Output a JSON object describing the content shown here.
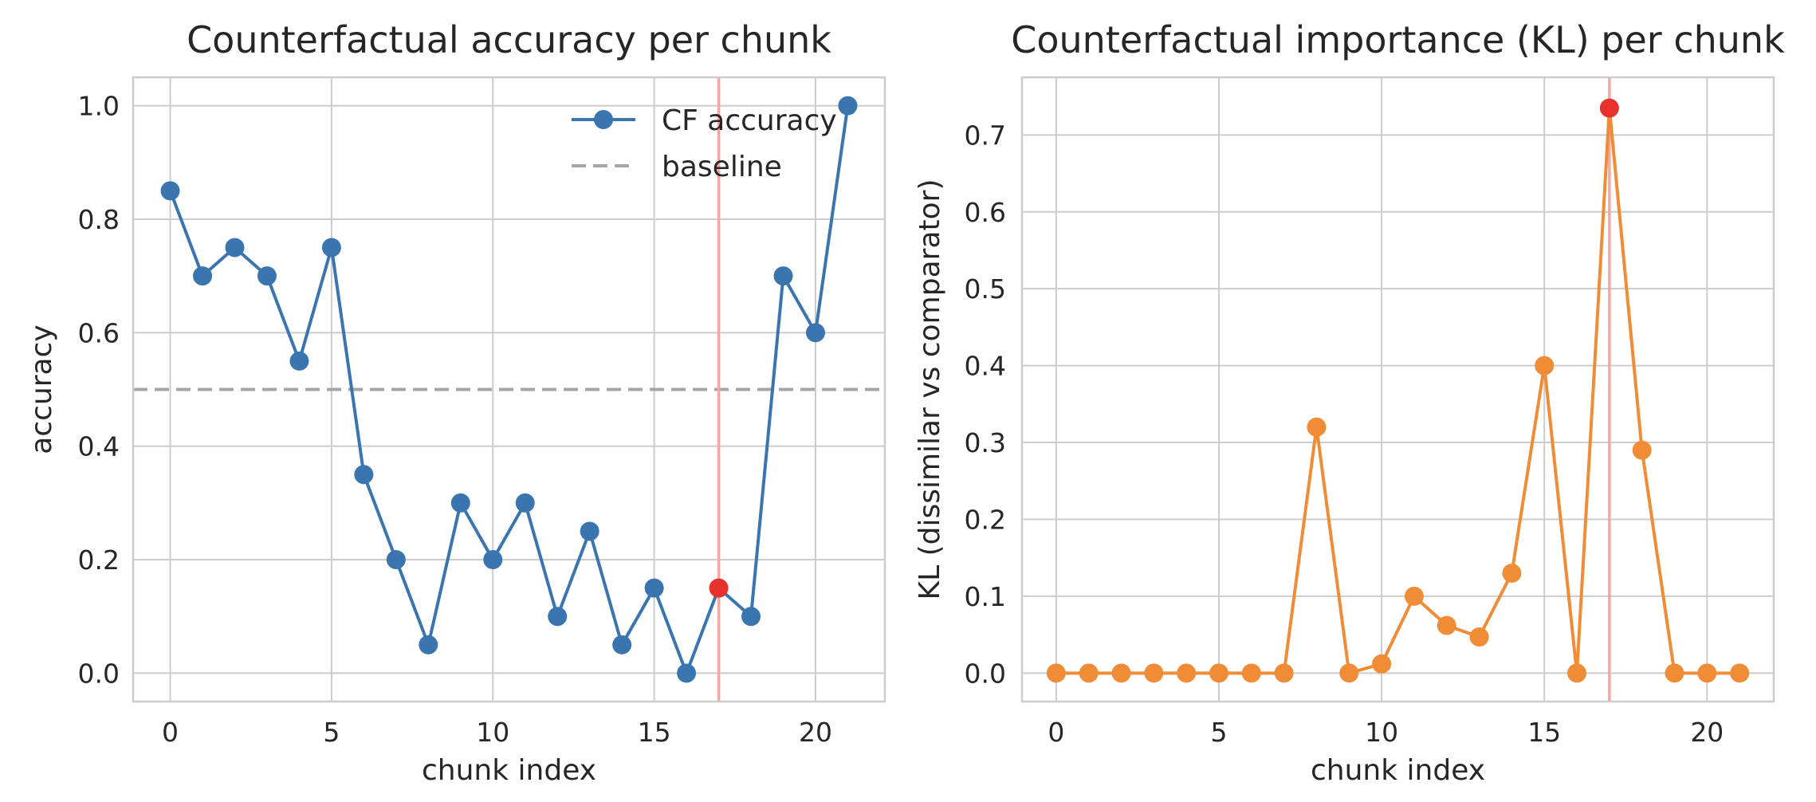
{
  "chart_data": [
    {
      "type": "line",
      "title": "Counterfactual accuracy per chunk",
      "xlabel": "chunk index",
      "ylabel": "accuracy",
      "xlim": [
        -1.15,
        22.15
      ],
      "ylim": [
        -0.05,
        1.05
      ],
      "xticks": [
        0,
        5,
        10,
        15,
        20
      ],
      "xtick_labels": [
        "0",
        "5",
        "10",
        "15",
        "20"
      ],
      "yticks": [
        0.0,
        0.2,
        0.4,
        0.6,
        0.8,
        1.0
      ],
      "ytick_labels": [
        "0.0",
        "0.2",
        "0.4",
        "0.6",
        "0.8",
        "1.0"
      ],
      "grid": true,
      "legend_position": "upper right",
      "x": [
        0,
        1,
        2,
        3,
        4,
        5,
        6,
        7,
        8,
        9,
        10,
        11,
        12,
        13,
        14,
        15,
        16,
        17,
        18,
        19,
        20,
        21
      ],
      "series": [
        {
          "name": "CF accuracy",
          "color": "#3a75b0",
          "marker": "circle",
          "values": [
            0.85,
            0.7,
            0.75,
            0.7,
            0.55,
            0.75,
            0.35,
            0.2,
            0.05,
            0.3,
            0.2,
            0.3,
            0.1,
            0.25,
            0.05,
            0.15,
            0.0,
            0.15,
            0.1,
            0.7,
            0.6,
            1.0
          ]
        }
      ],
      "baseline": {
        "name": "baseline",
        "value": 0.5,
        "color": "#a6a6a6",
        "style": "dashed"
      },
      "highlight": {
        "x": 17,
        "color": "#e8312a",
        "vline_color": "#f4a7a3"
      }
    },
    {
      "type": "line",
      "title": "Counterfactual importance (KL) per chunk",
      "xlabel": "chunk index",
      "ylabel": "KL (dissimilar vs comparator)",
      "xlim": [
        -1.05,
        22.05
      ],
      "ylim": [
        -0.037,
        0.775
      ],
      "xticks": [
        0,
        5,
        10,
        15,
        20
      ],
      "xtick_labels": [
        "0",
        "5",
        "10",
        "15",
        "20"
      ],
      "yticks": [
        0.0,
        0.1,
        0.2,
        0.3,
        0.4,
        0.5,
        0.6,
        0.7
      ],
      "ytick_labels": [
        "0.0",
        "0.1",
        "0.2",
        "0.3",
        "0.4",
        "0.5",
        "0.6",
        "0.7"
      ],
      "grid": true,
      "x": [
        0,
        1,
        2,
        3,
        4,
        5,
        6,
        7,
        8,
        9,
        10,
        11,
        12,
        13,
        14,
        15,
        16,
        17,
        18,
        19,
        20,
        21
      ],
      "series": [
        {
          "name": "",
          "color": "#f08c36",
          "marker": "circle",
          "values": [
            0.0,
            0.0,
            0.0,
            0.0,
            0.0,
            0.0,
            0.0,
            0.0,
            0.32,
            0.0,
            0.012,
            0.1,
            0.062,
            0.047,
            0.13,
            0.4,
            0.0,
            0.735,
            0.29,
            0.0,
            0.0,
            0.0
          ]
        }
      ],
      "highlight": {
        "x": 17,
        "color": "#e8312a",
        "vline_color": "#f4a7a3"
      }
    }
  ]
}
